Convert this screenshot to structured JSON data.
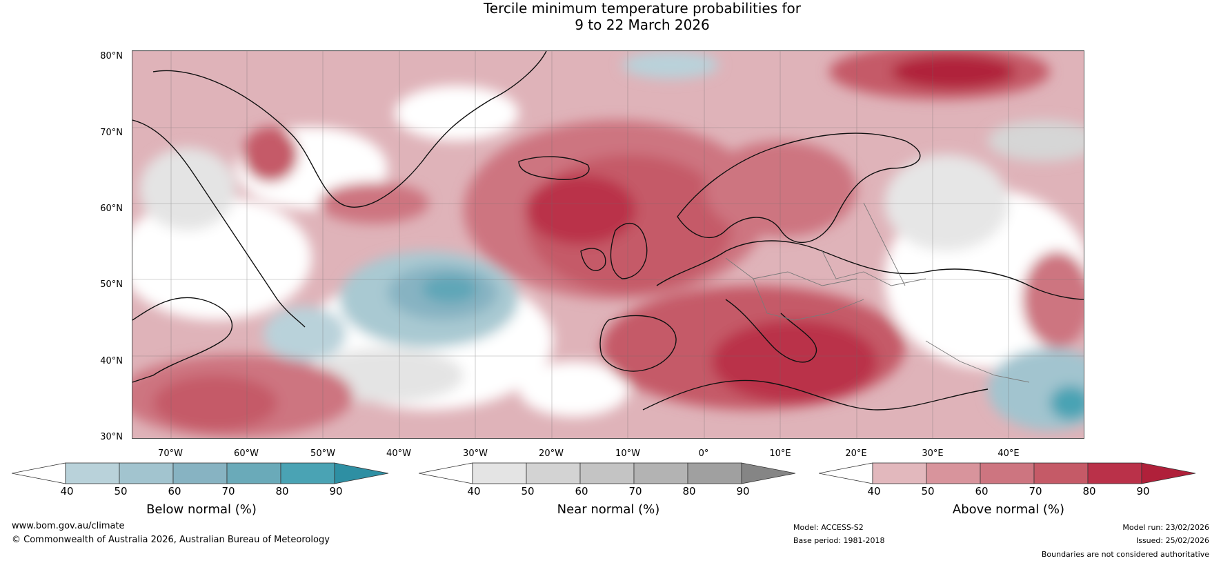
{
  "title": {
    "line1": "Tercile minimum temperature probabilities for",
    "line2": "9 to 22 March 2026"
  },
  "map": {
    "lat_labels": [
      "80°N",
      "70°N",
      "60°N",
      "50°N",
      "40°N",
      "30°N"
    ],
    "lon_labels": [
      "70°W",
      "60°W",
      "50°W",
      "40°W",
      "30°W",
      "20°W",
      "10°W",
      "0°",
      "10°E",
      "20°E",
      "30°E",
      "40°E"
    ]
  },
  "colorbars": [
    {
      "label": "Below normal (%)",
      "ticks": [
        "40",
        "50",
        "60",
        "70",
        "80",
        "90"
      ],
      "colors": [
        "#ffffff",
        "#b9d2da",
        "#a2c4cf",
        "#87b3c2",
        "#6aaab9",
        "#4aa3b4",
        "#2e8fa3"
      ]
    },
    {
      "label": "Near normal (%)",
      "ticks": [
        "40",
        "50",
        "60",
        "70",
        "80",
        "90"
      ],
      "colors": [
        "#ffffff",
        "#e4e4e4",
        "#d3d3d3",
        "#c4c4c4",
        "#b3b3b3",
        "#a0a0a0",
        "#858585"
      ]
    },
    {
      "label": "Above normal (%)",
      "ticks": [
        "40",
        "50",
        "60",
        "70",
        "80",
        "90"
      ],
      "colors": [
        "#ffffff",
        "#e2b8bd",
        "#d8949c",
        "#cd7580",
        "#c55a67",
        "#ba3149",
        "#b0203a"
      ]
    }
  ],
  "footer": {
    "website": "www.bom.gov.au/climate",
    "copyright": "© Commonwealth of Australia 2026, Australian Bureau of Meteorology",
    "model": "Model: ACCESS-S2",
    "base_period": "Base period: 1981-2018",
    "model_run": "Model run: 23/02/2026",
    "issued": "Issued: 25/02/2026",
    "disclaimer": "Boundaries are not considered authoritative"
  }
}
